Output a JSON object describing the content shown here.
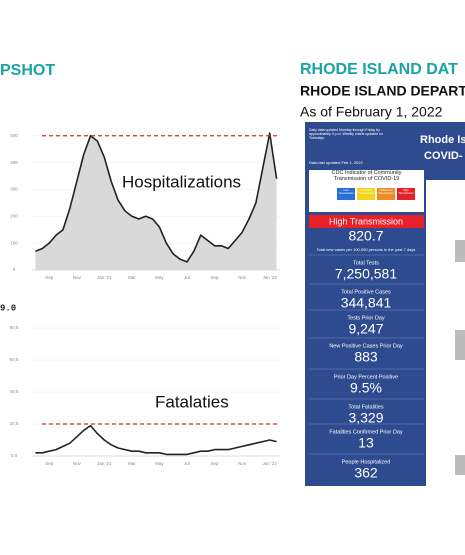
{
  "slide": {
    "left_heading": "PSHOT",
    "right_heading": "RHODE ISLAND DAT",
    "department": "RHODE ISLAND DEPARTA",
    "as_of": "As of February 1, 2022"
  },
  "chart_data": [
    {
      "type": "line",
      "annotation": "Hospitalizations",
      "color": "#222222",
      "area_color": "#d9d9d9",
      "threshold": 500,
      "threshold_color": "#c0392b",
      "categories": [
        null,
        null,
        "Sep",
        null,
        null,
        null,
        "Nov",
        null,
        null,
        null,
        "Jan '21",
        null,
        null,
        null,
        "Mar",
        null,
        null,
        null,
        "May",
        null,
        null,
        null,
        "Jul",
        null,
        null,
        null,
        "Sep",
        null,
        null,
        null,
        "Nov",
        null,
        null,
        null,
        "Jan '22",
        null
      ],
      "values": [
        70,
        80,
        100,
        130,
        150,
        230,
        330,
        430,
        500,
        480,
        420,
        330,
        260,
        220,
        200,
        190,
        200,
        190,
        160,
        100,
        60,
        40,
        30,
        70,
        130,
        110,
        90,
        90,
        80,
        110,
        140,
        190,
        250,
        380,
        510,
        340
      ],
      "ylim": [
        0,
        540
      ],
      "yticks": [
        0,
        100,
        200,
        300,
        400,
        500
      ]
    },
    {
      "type": "line",
      "annotation": "Fatalaties",
      "title": "9.0",
      "color": "#222222",
      "threshold": 20,
      "threshold_color": "#c0392b",
      "categories": [
        null,
        null,
        "Sep",
        null,
        null,
        null,
        "Nov",
        null,
        null,
        null,
        "Jan '21",
        null,
        null,
        null,
        "Mar",
        null,
        null,
        null,
        "May",
        null,
        null,
        null,
        "Jul",
        null,
        null,
        null,
        "Sep",
        null,
        null,
        null,
        "Nov",
        null,
        null,
        null,
        "Jan '22",
        null
      ],
      "values": [
        2,
        2,
        3,
        4,
        6,
        8,
        12,
        16,
        19,
        14,
        10,
        7,
        5,
        4,
        3,
        3,
        2,
        2,
        2,
        1,
        1,
        1,
        1,
        2,
        3,
        3,
        4,
        4,
        4,
        5,
        6,
        7,
        8,
        9,
        10,
        9
      ],
      "ylim": [
        0,
        90
      ],
      "yticks": [
        {
          "value": 0,
          "label": "0.0"
        },
        {
          "value": 20,
          "label": "20.0"
        },
        {
          "value": 40,
          "label": "40.0"
        },
        {
          "value": 60,
          "label": "60.0"
        },
        {
          "value": 80,
          "label": "80.0"
        }
      ]
    }
  ],
  "dashboard": {
    "title": "Rhode Island",
    "subtitle": "COVID-",
    "update_note": "Daily data updated Monday through Friday by approximately 3 p.m. Weekly charts updated on Tuesdays.",
    "last_updated": "Data last updated Feb 1, 2022",
    "cdc_title": "CDC Indicator of Community Transmission of COVID-19",
    "levels": [
      "Low Transmission",
      "Moderate Transmission",
      "Substantial Transmission",
      "High Transmission"
    ],
    "level": "High Transmission",
    "rate": "820.7",
    "rate_note": "Total new cases per 100,000 persons in the past 7 days",
    "stats": [
      {
        "label": "Total Tests",
        "value": "7,250,581"
      },
      {
        "label": "Total Positive Cases",
        "value": "344,841"
      },
      {
        "label": "Tests Prior Day",
        "value": "9,247"
      },
      {
        "label": "New Positive Cases Prior Day",
        "value": "883"
      },
      {
        "label": "Prior Day Percent Positive",
        "value": "9.5%"
      },
      {
        "label": "Total Fatalities",
        "value": "3,329"
      },
      {
        "label": "Fatalities Confirmed Prior Day",
        "value": "13"
      },
      {
        "label": "People Hospitalized",
        "value": "362"
      }
    ]
  }
}
